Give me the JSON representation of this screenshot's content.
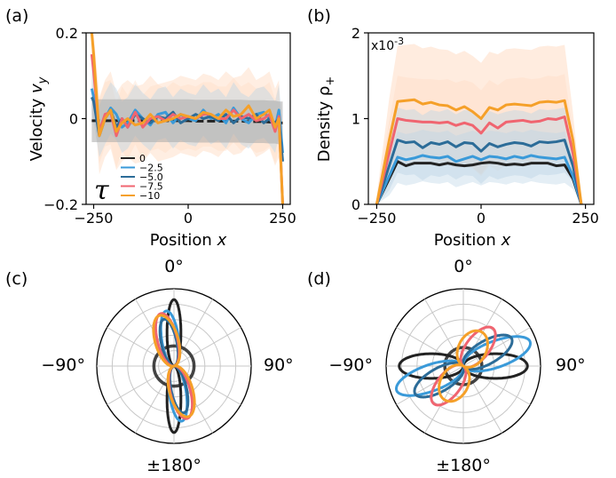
{
  "colors": {
    "series": [
      "#222222",
      "#3a9ad9",
      "#2c6c98",
      "#f06570",
      "#f5a029"
    ],
    "band_a": "#aaaaaa",
    "band_orange": "#ffd9bf",
    "band_blue": "#bcd5e6"
  },
  "chart_data": [
    {
      "panel": "(a)",
      "type": "line",
      "xlabel": "Position x",
      "ylabel": "Velocity v_y",
      "xlabel_main": "Position",
      "xlabel_var": "x",
      "ylabel_main": "Velocity",
      "ylabel_var": "v",
      "ylabel_sub": "y",
      "xlim": [
        -270,
        270
      ],
      "ylim": [
        -0.2,
        0.2
      ],
      "xticks": [
        -250,
        0,
        250
      ],
      "xtick_labels": [
        "−250",
        "0",
        "250"
      ],
      "yticks": [
        -0.2,
        0,
        0.2
      ],
      "ytick_labels": [
        "−0.2",
        "0",
        "0.2"
      ],
      "legend": {
        "title": "τ",
        "location": "lower-left",
        "entries": [
          "0",
          "−2.5",
          "−5.0",
          "−7.5",
          "−10"
        ]
      },
      "x": [
        -255,
        -250,
        -235,
        -220,
        -205,
        -190,
        -175,
        -160,
        -140,
        -120,
        -100,
        -80,
        -60,
        -40,
        -20,
        0,
        20,
        40,
        60,
        80,
        100,
        120,
        140,
        160,
        180,
        200,
        215,
        230,
        240,
        250
      ],
      "series": [
        {
          "name": "0",
          "values": [
            -0.005,
            -0.005,
            -0.005,
            -0.005,
            -0.005,
            -0.005,
            -0.005,
            -0.005,
            -0.005,
            -0.005,
            -0.005,
            -0.005,
            -0.005,
            -0.005,
            -0.005,
            -0.005,
            -0.006,
            -0.006,
            -0.006,
            -0.006,
            -0.006,
            -0.006,
            -0.006,
            -0.007,
            -0.007,
            -0.007,
            -0.008,
            -0.008,
            -0.01,
            -0.01
          ]
        },
        {
          "name": "−2.5",
          "values": [
            0.07,
            0.05,
            -0.03,
            0.0,
            0.025,
            0.01,
            -0.02,
            -0.01,
            0.02,
            0.0,
            -0.015,
            0.01,
            0.015,
            -0.01,
            0.01,
            0.0,
            -0.005,
            0.02,
            0.0,
            0.01,
            -0.01,
            0.025,
            0.0,
            -0.01,
            0.01,
            0.015,
            0.0,
            -0.02,
            0.02,
            -0.08
          ]
        },
        {
          "name": "−5.0",
          "values": [
            0.05,
            0.04,
            -0.04,
            0.0,
            0.02,
            -0.02,
            0.0,
            -0.02,
            0.01,
            0.0,
            -0.01,
            0.005,
            0.0,
            0.015,
            -0.01,
            0.0,
            0.01,
            0.0,
            0.005,
            -0.005,
            0.01,
            -0.01,
            0.005,
            0.0,
            0.01,
            -0.01,
            0.0,
            -0.01,
            0.0,
            -0.1
          ]
        },
        {
          "name": "−7.5",
          "values": [
            0.15,
            0.11,
            -0.03,
            0.01,
            0.015,
            -0.04,
            0.0,
            -0.02,
            0.015,
            -0.02,
            0.0,
            0.005,
            -0.005,
            0.01,
            0.0,
            0.005,
            0.0,
            0.01,
            0.01,
            0.0,
            0.0,
            0.02,
            0.0,
            0.01,
            -0.005,
            0.0,
            0.01,
            -0.03,
            0.005,
            -0.21
          ]
        },
        {
          "name": "−10",
          "values": [
            0.21,
            0.15,
            -0.04,
            0.0,
            0.02,
            -0.03,
            -0.01,
            0.0,
            -0.015,
            -0.01,
            0.01,
            -0.01,
            -0.005,
            0.0,
            0.01,
            0.005,
            0.0,
            0.015,
            0.01,
            0.0,
            0.02,
            0.005,
            0.01,
            0.03,
            0.0,
            0.01,
            0.02,
            -0.02,
            0.0,
            -0.21
          ]
        }
      ]
    },
    {
      "panel": "(b)",
      "type": "area",
      "xlabel": "Position x",
      "ylabel": "Density ρ+",
      "xlabel_main": "Position",
      "xlabel_var": "x",
      "ylabel_main": "Density",
      "ylabel_var": "ρ",
      "ylabel_sub": "+",
      "scale_note": "x10-3",
      "scale_note_main": "x10",
      "scale_note_exp": "-3",
      "xlim": [
        -270,
        270
      ],
      "ylim": [
        0,
        2
      ],
      "xticks": [
        -250,
        0,
        250
      ],
      "xtick_labels": [
        "−250",
        "0",
        "250"
      ],
      "yticks": [
        0,
        1,
        2
      ],
      "ytick_labels": [
        "0",
        "1",
        "2"
      ],
      "x": [
        -250,
        -220,
        -200,
        -180,
        -160,
        -140,
        -120,
        -100,
        -80,
        -60,
        -40,
        -20,
        0,
        20,
        40,
        60,
        80,
        100,
        120,
        140,
        160,
        180,
        200,
        220,
        240
      ],
      "series": [
        {
          "name": "0",
          "values": [
            0.0,
            0.3,
            0.5,
            0.45,
            0.48,
            0.48,
            0.48,
            0.46,
            0.48,
            0.46,
            0.45,
            0.46,
            0.48,
            0.49,
            0.48,
            0.46,
            0.47,
            0.46,
            0.48,
            0.48,
            0.48,
            0.45,
            0.46,
            0.3,
            0.0
          ]
        },
        {
          "name": "−2.5",
          "values": [
            0.0,
            0.33,
            0.55,
            0.52,
            0.54,
            0.57,
            0.55,
            0.54,
            0.56,
            0.5,
            0.53,
            0.56,
            0.52,
            0.56,
            0.55,
            0.53,
            0.56,
            0.54,
            0.57,
            0.55,
            0.54,
            0.53,
            0.55,
            0.33,
            0.0
          ]
        },
        {
          "name": "−5.0",
          "values": [
            0.0,
            0.45,
            0.75,
            0.72,
            0.73,
            0.66,
            0.72,
            0.7,
            0.73,
            0.67,
            0.72,
            0.71,
            0.62,
            0.71,
            0.67,
            0.7,
            0.72,
            0.71,
            0.68,
            0.73,
            0.72,
            0.73,
            0.75,
            0.45,
            0.0
          ]
        },
        {
          "name": "−7.5",
          "values": [
            0.0,
            0.6,
            1.0,
            0.98,
            0.97,
            0.96,
            0.96,
            0.95,
            0.96,
            0.92,
            0.95,
            0.92,
            0.83,
            0.95,
            0.89,
            0.96,
            0.97,
            0.98,
            0.96,
            0.97,
            1.0,
            0.99,
            1.02,
            0.6,
            0.0
          ]
        },
        {
          "name": "−10",
          "values": [
            0.0,
            0.75,
            1.2,
            1.21,
            1.22,
            1.17,
            1.19,
            1.16,
            1.15,
            1.1,
            1.14,
            1.08,
            1.0,
            1.13,
            1.1,
            1.16,
            1.17,
            1.16,
            1.15,
            1.19,
            1.2,
            1.19,
            1.21,
            0.75,
            0.0
          ]
        }
      ]
    },
    {
      "panel": "(c)",
      "type": "polar",
      "angle_labels": [
        "0°",
        "90°",
        "±180°",
        "−90°"
      ],
      "rings": 5,
      "series": [
        {
          "name": "0",
          "lobes": [
            {
              "angle_deg": 0,
              "length": 0.86,
              "width": 0.18
            },
            {
              "angle_deg": 180,
              "length": 0.86,
              "width": 0.18
            }
          ],
          "ring": 0.26
        },
        {
          "name": "−2.5",
          "lobes": [
            {
              "angle_deg": -8,
              "length": 0.72,
              "width": 0.22
            },
            {
              "angle_deg": 172,
              "length": 0.72,
              "width": 0.22
            }
          ]
        },
        {
          "name": "−5.0",
          "lobes": [
            {
              "angle_deg": -12,
              "length": 0.62,
              "width": 0.2
            },
            {
              "angle_deg": 168,
              "length": 0.62,
              "width": 0.2
            }
          ]
        },
        {
          "name": "−7.5",
          "lobes": [
            {
              "angle_deg": -14,
              "length": 0.7,
              "width": 0.26
            },
            {
              "angle_deg": 166,
              "length": 0.7,
              "width": 0.26
            }
          ]
        },
        {
          "name": "−10",
          "lobes": [
            {
              "angle_deg": -16,
              "length": 0.68,
              "width": 0.3
            },
            {
              "angle_deg": 164,
              "length": 0.68,
              "width": 0.3
            }
          ]
        }
      ]
    },
    {
      "panel": "(d)",
      "type": "polar",
      "angle_labels": [
        "0°",
        "90°",
        "±180°",
        "−90°"
      ],
      "rings": 5,
      "series": [
        {
          "name": "0",
          "lobes": [
            {
              "angle_deg": 90,
              "length": 0.83,
              "width": 0.32
            },
            {
              "angle_deg": -90,
              "length": 0.83,
              "width": 0.32
            }
          ],
          "ring": 0.24
        },
        {
          "name": "−2.5",
          "lobes": [
            {
              "angle_deg": 70,
              "length": 0.92,
              "width": 0.34
            },
            {
              "angle_deg": -110,
              "length": 0.92,
              "width": 0.34
            }
          ]
        },
        {
          "name": "−5.0",
          "lobes": [
            {
              "angle_deg": 60,
              "length": 0.72,
              "width": 0.3
            },
            {
              "angle_deg": -120,
              "length": 0.72,
              "width": 0.3
            }
          ]
        },
        {
          "name": "−7.5",
          "lobes": [
            {
              "angle_deg": 38,
              "length": 0.62,
              "width": 0.3
            },
            {
              "angle_deg": -142,
              "length": 0.62,
              "width": 0.3
            }
          ]
        },
        {
          "name": "−10",
          "lobes": [
            {
              "angle_deg": 28,
              "length": 0.5,
              "width": 0.36
            },
            {
              "angle_deg": -152,
              "length": 0.5,
              "width": 0.36
            }
          ]
        }
      ]
    }
  ]
}
